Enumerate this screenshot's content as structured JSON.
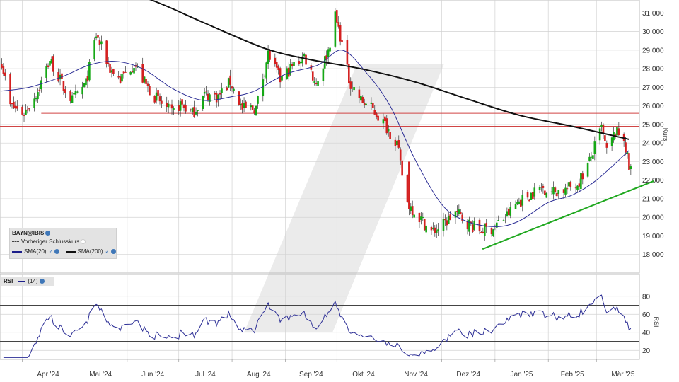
{
  "chart_data": [
    {
      "type": "candlestick",
      "instrument": "BAYN@IBIS",
      "ylabel": "Kurs",
      "ylim": [
        17000,
        31700
      ],
      "yticks": [
        "31.000",
        "30.000",
        "29.000",
        "28.000",
        "27.000",
        "26.000",
        "25.000",
        "24.000",
        "23.000",
        "22.000",
        "21.000",
        "20.000",
        "19.000",
        "18.000"
      ],
      "x_tick_labels": [
        "Apr '24",
        "Mai '24",
        "Jun '24",
        "Jul '24",
        "Aug '24",
        "Sep '24",
        "Okt '24",
        "Nov '24",
        "Dez '24",
        "Jan '25",
        "Feb '25",
        "Mär '25"
      ],
      "close_anchors": [
        [
          "2024-03-20",
          28400
        ],
        [
          "2024-03-25",
          26000
        ],
        [
          "2024-04-02",
          25600
        ],
        [
          "2024-04-10",
          26800
        ],
        [
          "2024-04-17",
          28500
        ],
        [
          "2024-04-25",
          27000
        ],
        [
          "2024-04-30",
          26300
        ],
        [
          "2024-05-08",
          27200
        ],
        [
          "2024-05-14",
          29800
        ],
        [
          "2024-05-22",
          28000
        ],
        [
          "2024-05-28",
          27400
        ],
        [
          "2024-06-05",
          28300
        ],
        [
          "2024-06-12",
          27100
        ],
        [
          "2024-06-20",
          26200
        ],
        [
          "2024-06-27",
          25600
        ],
        [
          "2024-07-02",
          26100
        ],
        [
          "2024-07-09",
          25600
        ],
        [
          "2024-07-16",
          26600
        ],
        [
          "2024-07-24",
          26500
        ],
        [
          "2024-07-31",
          27300
        ],
        [
          "2024-08-07",
          25800
        ],
        [
          "2024-08-15",
          25900
        ],
        [
          "2024-08-22",
          28800
        ],
        [
          "2024-08-29",
          27400
        ],
        [
          "2024-09-05",
          28100
        ],
        [
          "2024-09-12",
          28700
        ],
        [
          "2024-09-19",
          27200
        ],
        [
          "2024-09-26",
          29000
        ],
        [
          "2024-09-30",
          30800
        ],
        [
          "2024-10-03",
          29800
        ],
        [
          "2024-10-08",
          27400
        ],
        [
          "2024-10-15",
          26300
        ],
        [
          "2024-10-22",
          25800
        ],
        [
          "2024-10-29",
          25000
        ],
        [
          "2024-11-05",
          24000
        ],
        [
          "2024-11-07",
          22800
        ],
        [
          "2024-11-11",
          20800
        ],
        [
          "2024-11-18",
          20000
        ],
        [
          "2024-11-25",
          19200
        ],
        [
          "2024-12-02",
          19600
        ],
        [
          "2024-12-09",
          20300
        ],
        [
          "2024-12-16",
          19700
        ],
        [
          "2024-12-23",
          19300
        ],
        [
          "2024-12-30",
          19400
        ],
        [
          "2025-01-07",
          20000
        ],
        [
          "2025-01-14",
          20800
        ],
        [
          "2025-01-21",
          21200
        ],
        [
          "2025-01-28",
          21600
        ],
        [
          "2025-02-04",
          21400
        ],
        [
          "2025-02-11",
          21500
        ],
        [
          "2025-02-18",
          21800
        ],
        [
          "2025-02-25",
          23000
        ],
        [
          "2025-03-04",
          24800
        ],
        [
          "2025-03-07",
          23500
        ],
        [
          "2025-03-12",
          24600
        ],
        [
          "2025-03-17",
          24300
        ],
        [
          "2025-03-20",
          22600
        ]
      ],
      "sma_20_anchors": [
        [
          "2024-03-20",
          26800
        ],
        [
          "2024-04-05",
          27000
        ],
        [
          "2024-04-25",
          27600
        ],
        [
          "2024-05-10",
          28200
        ],
        [
          "2024-05-25",
          28400
        ],
        [
          "2024-06-10",
          28000
        ],
        [
          "2024-06-28",
          26900
        ],
        [
          "2024-07-15",
          26300
        ],
        [
          "2024-08-01",
          26500
        ],
        [
          "2024-08-14",
          26800
        ],
        [
          "2024-09-01",
          27700
        ],
        [
          "2024-09-20",
          28200
        ],
        [
          "2024-10-04",
          29000
        ],
        [
          "2024-10-18",
          27800
        ],
        [
          "2024-11-01",
          26000
        ],
        [
          "2024-11-15",
          23200
        ],
        [
          "2024-12-01",
          20700
        ],
        [
          "2024-12-15",
          19800
        ],
        [
          "2025-01-01",
          19500
        ],
        [
          "2025-01-15",
          19800
        ],
        [
          "2025-02-01",
          20800
        ],
        [
          "2025-02-15",
          21200
        ],
        [
          "2025-03-01",
          22000
        ],
        [
          "2025-03-20",
          23600
        ]
      ],
      "sma_200_anchors": [
        [
          "2024-05-01",
          33100
        ],
        [
          "2024-06-15",
          31700
        ],
        [
          "2024-07-15",
          30500
        ],
        [
          "2024-08-20",
          29100
        ],
        [
          "2024-09-15",
          28500
        ],
        [
          "2024-10-15",
          28000
        ],
        [
          "2024-11-15",
          27300
        ],
        [
          "2024-12-15",
          26400
        ],
        [
          "2025-01-15",
          25500
        ],
        [
          "2025-02-15",
          24900
        ],
        [
          "2025-03-20",
          24200
        ]
      ],
      "horizontal_levels": [
        25600,
        24900
      ],
      "trendline": [
        [
          "2024-12-28",
          18400
        ],
        [
          "2025-03-22",
          21800
        ]
      ],
      "legend": [
        {
          "label": "BAYN@IBIS"
        },
        {
          "label": "Vorheriger Schlusskurs",
          "style": "dashed"
        },
        {
          "label": "SMA(20)",
          "color": "#1c1e8a"
        },
        {
          "label": "SMA(200)",
          "color": "#111111"
        }
      ],
      "colors": {
        "up": "#15a815",
        "down": "#d42020",
        "sma20": "#2d2f96",
        "sma200": "#111111",
        "level": "#d04545",
        "trend": "#1fa81f",
        "grid": "#d2d2d2"
      }
    },
    {
      "type": "line",
      "ylabel": "RSI",
      "series": [
        {
          "name": "(14)",
          "color": "#2d2f96"
        }
      ],
      "ylim": [
        10,
        90
      ],
      "yticks": [
        "80",
        "60",
        "40",
        "20"
      ],
      "reference_levels": [
        70,
        30
      ]
    }
  ],
  "legend": {
    "title": "BAYN@IBIS",
    "prev_close": "Vorheriger Schlusskurs",
    "sma20": "SMA(20)",
    "sma200": "SMA(200)",
    "check": "✓"
  },
  "rsi_legend": {
    "title": "RSI",
    "period": "(14)"
  }
}
